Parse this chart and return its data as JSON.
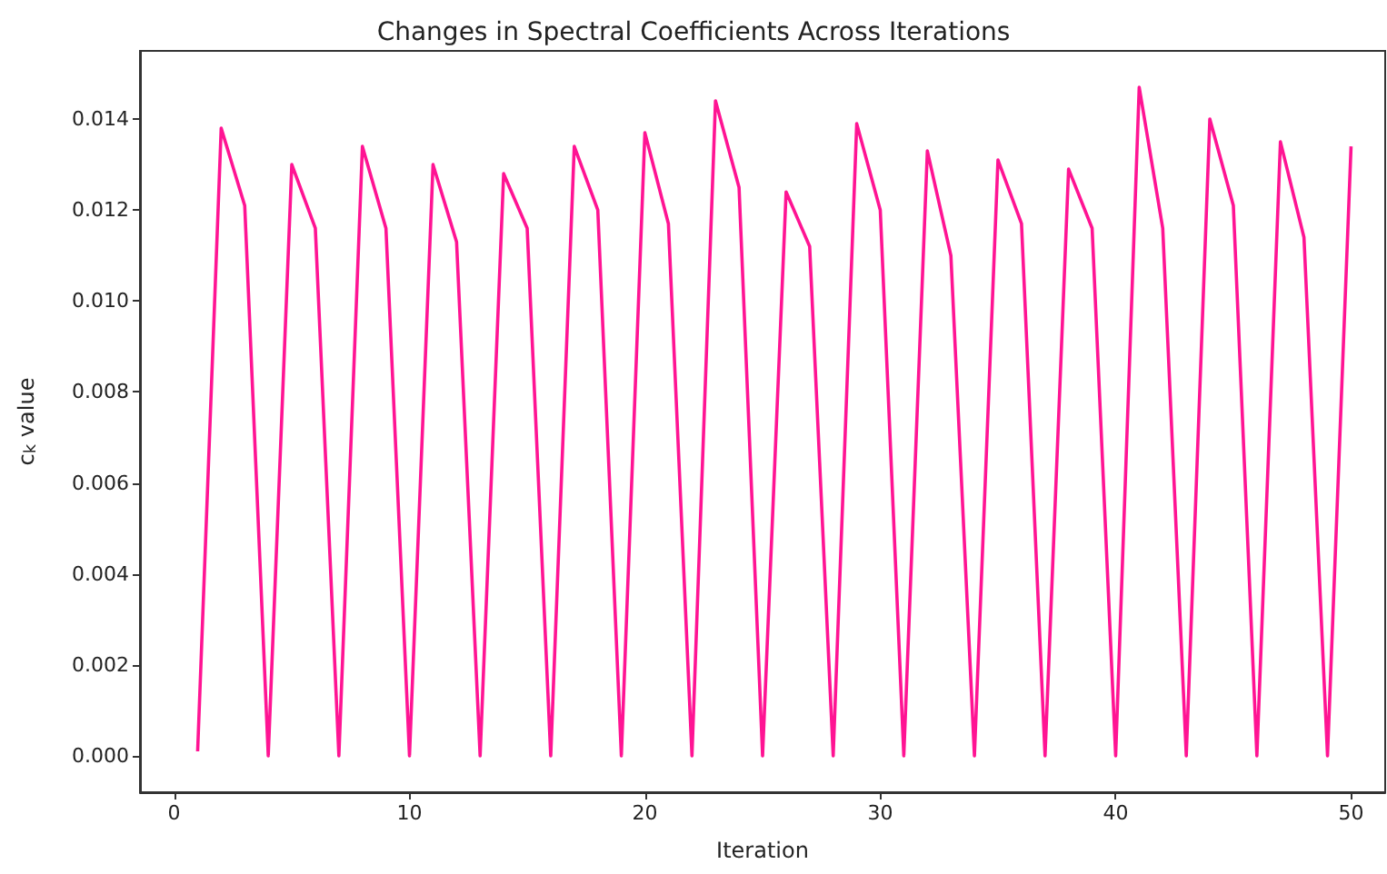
{
  "chart_data": {
    "type": "line",
    "title": "Changes in Spectral Coefficients Across Iterations",
    "xlabel": "Iteration",
    "ylabel": "c$_{k}$ value",
    "x": [
      1,
      2,
      3,
      4,
      5,
      6,
      7,
      8,
      9,
      10,
      11,
      12,
      13,
      14,
      15,
      16,
      17,
      18,
      19,
      20,
      21,
      22,
      23,
      24,
      25,
      26,
      27,
      28,
      29,
      30,
      31,
      32,
      33,
      34,
      35,
      36,
      37,
      38,
      39,
      40,
      41,
      42,
      43,
      44,
      45,
      46,
      47,
      48,
      49,
      50
    ],
    "series": [
      {
        "color": "#ff1493",
        "values": [
          0.0001,
          0.0138,
          0.0121,
          0,
          0.013,
          0.0116,
          0,
          0.0134,
          0.0116,
          0,
          0.013,
          0.0113,
          0,
          0.0128,
          0.0116,
          0,
          0.0134,
          0.012,
          0,
          0.0137,
          0.0117,
          0,
          0.0144,
          0.0125,
          0,
          0.0124,
          0.0112,
          0,
          0.0139,
          0.012,
          0,
          0.0133,
          0.011,
          0,
          0.0131,
          0.0117,
          0,
          0.0129,
          0.0116,
          0,
          0.0147,
          0.0116,
          0,
          0.014,
          0.0121,
          0,
          0.0135,
          0.0114,
          0,
          0.0134
        ]
      }
    ],
    "xlim": [
      -1.45,
      51.45
    ],
    "xticks": [
      0,
      10,
      20,
      30,
      40,
      50
    ],
    "ylim": [
      -0.0008,
      0.0155
    ],
    "yticks": [
      {
        "value": 0,
        "label": "0.000"
      },
      {
        "value": 0.002,
        "label": "0.002"
      },
      {
        "value": 0.004,
        "label": "0.004"
      },
      {
        "value": 0.006,
        "label": "0.006"
      },
      {
        "value": 0.008,
        "label": "0.008"
      },
      {
        "value": 0.01,
        "label": "0.010"
      },
      {
        "value": 0.012,
        "label": "0.012"
      },
      {
        "value": 0.014,
        "label": "0.014"
      }
    ],
    "grid": false,
    "marker": "none",
    "line_style": "solid"
  }
}
